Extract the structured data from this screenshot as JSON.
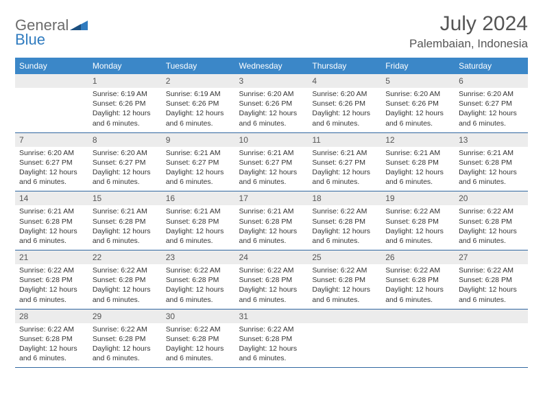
{
  "logo": {
    "word1": "General",
    "word2": "Blue"
  },
  "title": "July 2024",
  "location": "Palembaian, Indonesia",
  "colors": {
    "header_bg": "#3b87c8",
    "header_text": "#ffffff",
    "daynum_bg": "#ececec",
    "row_sep": "#2f66a0",
    "logo_gray": "#6b6b6b",
    "logo_blue": "#2f7bbf"
  },
  "weekdays": [
    "Sunday",
    "Monday",
    "Tuesday",
    "Wednesday",
    "Thursday",
    "Friday",
    "Saturday"
  ],
  "start_offset": 1,
  "days": [
    {
      "n": 1,
      "sunrise": "6:19 AM",
      "sunset": "6:26 PM",
      "daylight": "12 hours and 6 minutes."
    },
    {
      "n": 2,
      "sunrise": "6:19 AM",
      "sunset": "6:26 PM",
      "daylight": "12 hours and 6 minutes."
    },
    {
      "n": 3,
      "sunrise": "6:20 AM",
      "sunset": "6:26 PM",
      "daylight": "12 hours and 6 minutes."
    },
    {
      "n": 4,
      "sunrise": "6:20 AM",
      "sunset": "6:26 PM",
      "daylight": "12 hours and 6 minutes."
    },
    {
      "n": 5,
      "sunrise": "6:20 AM",
      "sunset": "6:26 PM",
      "daylight": "12 hours and 6 minutes."
    },
    {
      "n": 6,
      "sunrise": "6:20 AM",
      "sunset": "6:27 PM",
      "daylight": "12 hours and 6 minutes."
    },
    {
      "n": 7,
      "sunrise": "6:20 AM",
      "sunset": "6:27 PM",
      "daylight": "12 hours and 6 minutes."
    },
    {
      "n": 8,
      "sunrise": "6:20 AM",
      "sunset": "6:27 PM",
      "daylight": "12 hours and 6 minutes."
    },
    {
      "n": 9,
      "sunrise": "6:21 AM",
      "sunset": "6:27 PM",
      "daylight": "12 hours and 6 minutes."
    },
    {
      "n": 10,
      "sunrise": "6:21 AM",
      "sunset": "6:27 PM",
      "daylight": "12 hours and 6 minutes."
    },
    {
      "n": 11,
      "sunrise": "6:21 AM",
      "sunset": "6:27 PM",
      "daylight": "12 hours and 6 minutes."
    },
    {
      "n": 12,
      "sunrise": "6:21 AM",
      "sunset": "6:28 PM",
      "daylight": "12 hours and 6 minutes."
    },
    {
      "n": 13,
      "sunrise": "6:21 AM",
      "sunset": "6:28 PM",
      "daylight": "12 hours and 6 minutes."
    },
    {
      "n": 14,
      "sunrise": "6:21 AM",
      "sunset": "6:28 PM",
      "daylight": "12 hours and 6 minutes."
    },
    {
      "n": 15,
      "sunrise": "6:21 AM",
      "sunset": "6:28 PM",
      "daylight": "12 hours and 6 minutes."
    },
    {
      "n": 16,
      "sunrise": "6:21 AM",
      "sunset": "6:28 PM",
      "daylight": "12 hours and 6 minutes."
    },
    {
      "n": 17,
      "sunrise": "6:21 AM",
      "sunset": "6:28 PM",
      "daylight": "12 hours and 6 minutes."
    },
    {
      "n": 18,
      "sunrise": "6:22 AM",
      "sunset": "6:28 PM",
      "daylight": "12 hours and 6 minutes."
    },
    {
      "n": 19,
      "sunrise": "6:22 AM",
      "sunset": "6:28 PM",
      "daylight": "12 hours and 6 minutes."
    },
    {
      "n": 20,
      "sunrise": "6:22 AM",
      "sunset": "6:28 PM",
      "daylight": "12 hours and 6 minutes."
    },
    {
      "n": 21,
      "sunrise": "6:22 AM",
      "sunset": "6:28 PM",
      "daylight": "12 hours and 6 minutes."
    },
    {
      "n": 22,
      "sunrise": "6:22 AM",
      "sunset": "6:28 PM",
      "daylight": "12 hours and 6 minutes."
    },
    {
      "n": 23,
      "sunrise": "6:22 AM",
      "sunset": "6:28 PM",
      "daylight": "12 hours and 6 minutes."
    },
    {
      "n": 24,
      "sunrise": "6:22 AM",
      "sunset": "6:28 PM",
      "daylight": "12 hours and 6 minutes."
    },
    {
      "n": 25,
      "sunrise": "6:22 AM",
      "sunset": "6:28 PM",
      "daylight": "12 hours and 6 minutes."
    },
    {
      "n": 26,
      "sunrise": "6:22 AM",
      "sunset": "6:28 PM",
      "daylight": "12 hours and 6 minutes."
    },
    {
      "n": 27,
      "sunrise": "6:22 AM",
      "sunset": "6:28 PM",
      "daylight": "12 hours and 6 minutes."
    },
    {
      "n": 28,
      "sunrise": "6:22 AM",
      "sunset": "6:28 PM",
      "daylight": "12 hours and 6 minutes."
    },
    {
      "n": 29,
      "sunrise": "6:22 AM",
      "sunset": "6:28 PM",
      "daylight": "12 hours and 6 minutes."
    },
    {
      "n": 30,
      "sunrise": "6:22 AM",
      "sunset": "6:28 PM",
      "daylight": "12 hours and 6 minutes."
    },
    {
      "n": 31,
      "sunrise": "6:22 AM",
      "sunset": "6:28 PM",
      "daylight": "12 hours and 6 minutes."
    }
  ],
  "labels": {
    "sunrise": "Sunrise:",
    "sunset": "Sunset:",
    "daylight": "Daylight:"
  }
}
